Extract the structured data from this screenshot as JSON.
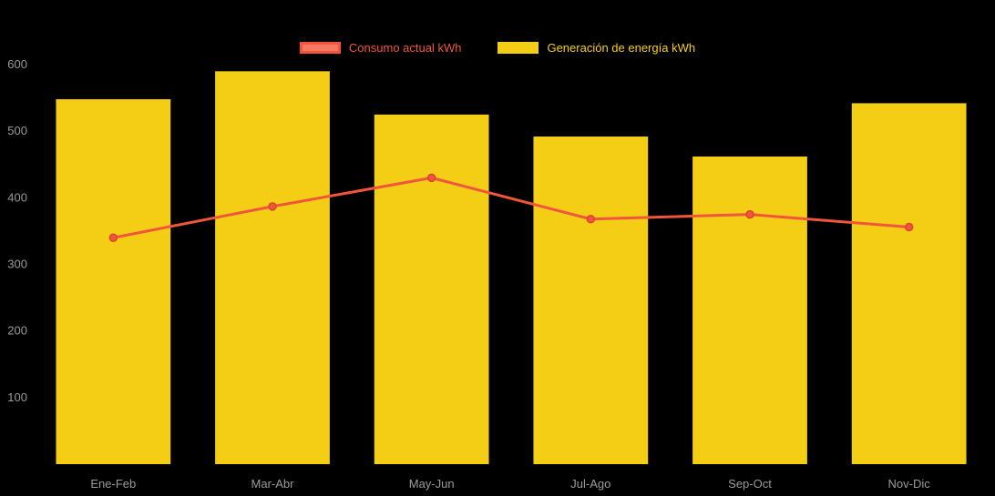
{
  "chart_data": {
    "type": "bar",
    "subtype": "bar-with-line-overlay",
    "title": "",
    "xlabel": "",
    "ylabel": "",
    "categories": [
      "Ene-Feb",
      "Mar-Abr",
      "May-Jun",
      "Jul-Ago",
      "Sep-Oct",
      "Nov-Dic"
    ],
    "series": [
      {
        "name": "Consumo actual kWh",
        "type": "line",
        "color": "#F0563C",
        "marker_border": "#D9442E",
        "legend_fill": "#F37A60",
        "values": [
          340,
          387,
          430,
          368,
          375,
          356
        ]
      },
      {
        "name": "Generación de energía kWh",
        "type": "bar",
        "color": "#F4CE14",
        "values": [
          548,
          590,
          525,
          492,
          462,
          542
        ]
      }
    ],
    "y_ticks": [
      600,
      500,
      400,
      300,
      200,
      100
    ],
    "ylim": [
      0,
      600
    ],
    "legend_position": "top",
    "grid": false,
    "background_color": "#000000",
    "axis_tick_color": "#9A9A9A"
  }
}
